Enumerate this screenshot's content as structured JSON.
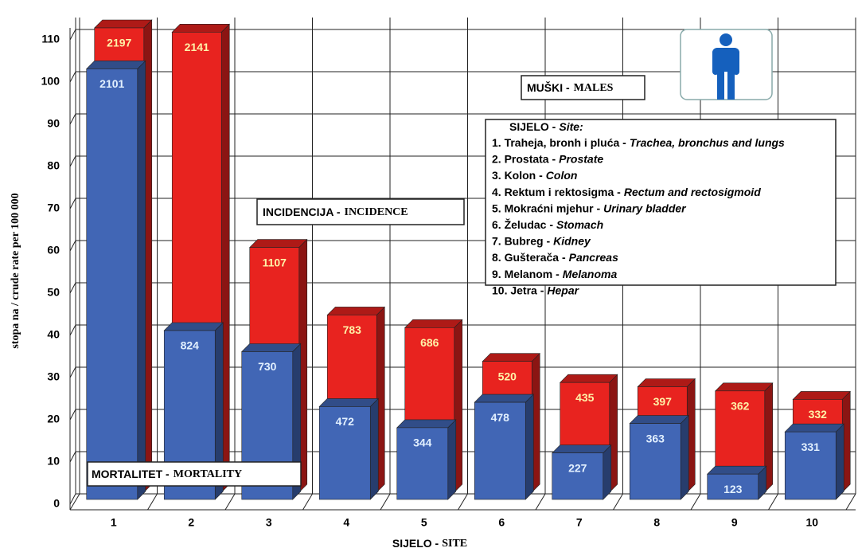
{
  "chart_data": {
    "type": "bar3d",
    "title": "MUŠKI -",
    "title_en": "MALES",
    "y_label": "stopa na / crude rate per 100 000",
    "x_label": "SIJELO -",
    "x_label_en": "SITE",
    "categories": [
      "1",
      "2",
      "3",
      "4",
      "5",
      "6",
      "7",
      "8",
      "9",
      "10"
    ],
    "series": [
      {
        "name": "INCIDENCIJA -",
        "name_en": "INCIDENCE",
        "color": "#e8231f",
        "values": [
          110,
          109,
          58,
          42,
          39,
          31,
          26,
          25,
          24,
          22
        ],
        "counts": [
          2197,
          2141,
          1107,
          783,
          686,
          520,
          435,
          397,
          362,
          332
        ]
      },
      {
        "name": "MORTALITET -",
        "name_en": "MORTALITY",
        "color": "#4166b5",
        "values": [
          102,
          40,
          35,
          22,
          17,
          23,
          11,
          18,
          6,
          16
        ],
        "counts": [
          2101,
          824,
          730,
          472,
          344,
          478,
          227,
          363,
          123,
          331
        ]
      }
    ],
    "ylim": [
      0,
      110
    ],
    "yticks": [
      0,
      10,
      20,
      30,
      40,
      50,
      60,
      70,
      80,
      90,
      100,
      110
    ],
    "grid": true,
    "legend_title": "SIJELO -",
    "legend_title_en": "Site:",
    "sites": [
      {
        "local": "1. Traheja, bronh i pluća -",
        "english": "Trachea, bronchus and lungs"
      },
      {
        "local": "2. Prostata -",
        "english": "Prostate"
      },
      {
        "local": "3. Kolon -",
        "english": "Colon"
      },
      {
        "local": "4. Rektum i rektosigma -",
        "english": "Rectum and rectosigmoid"
      },
      {
        "local": "5. Mokraćni mjehur -",
        "english": "Urinary bladder"
      },
      {
        "local": "6. Želudac -",
        "english": "Stomach"
      },
      {
        "local": "7. Bubreg -",
        "english": "Kidney"
      },
      {
        "local": "8. Gušterača -",
        "english": "Pancreas"
      },
      {
        "local": "9. Melanom -",
        "english": "Melanoma"
      },
      {
        "local": "10. Jetra -",
        "english": "Hepar"
      }
    ]
  }
}
